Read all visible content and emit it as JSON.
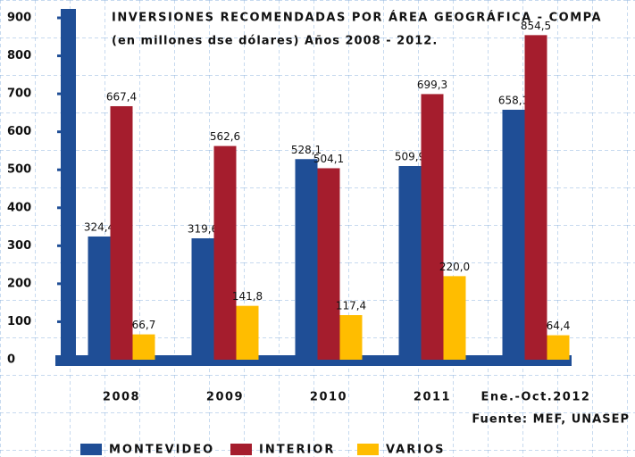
{
  "chart_data": {
    "type": "bar",
    "title": "INVERSIONES RECOMENDADAS POR ÁREA GEOGRÁFICA - COMPA",
    "subtitle": "(en millones dse dólares) Años 2008 - 2012.",
    "source": "Fuente: MEF, UNASEP",
    "categories": [
      "2008",
      "2009",
      "2010",
      "2011",
      "Ene.-Oct.2012"
    ],
    "series": [
      {
        "name": "MONTEVIDEO",
        "color": "#1f4e96",
        "values": [
          324.4,
          319.6,
          528.1,
          509.9,
          658.1
        ],
        "value_labels": [
          "324,4",
          "319,6",
          "528,1",
          "509,9",
          "658,1"
        ]
      },
      {
        "name": "INTERIOR",
        "color": "#a51d2d",
        "values": [
          667.4,
          562.6,
          504.1,
          699.3,
          854.5
        ],
        "value_labels": [
          "667,4",
          "562,6",
          "504,1",
          "699,3",
          "854,5"
        ]
      },
      {
        "name": "VARIOS",
        "color": "#ffbd00",
        "values": [
          66.7,
          141.8,
          117.4,
          220.0,
          64.4
        ],
        "value_labels": [
          "66,7",
          "141,8",
          "117,4",
          "220,0",
          "64,4"
        ]
      }
    ],
    "ylim": [
      0,
      900
    ],
    "yticks": [
      0,
      100,
      200,
      300,
      400,
      500,
      600,
      700,
      800,
      900
    ]
  }
}
